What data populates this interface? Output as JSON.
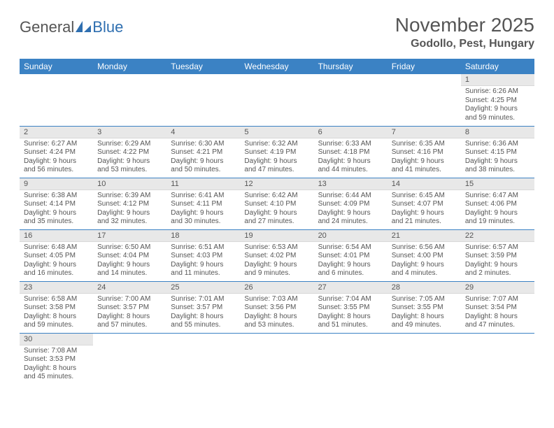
{
  "logo": {
    "part1": "General",
    "part2": "Blue",
    "shape_color": "#2f6fb0"
  },
  "title": "November 2025",
  "location": "Godollo, Pest, Hungary",
  "colors": {
    "header_bg": "#3b82c4",
    "header_fg": "#ffffff",
    "daynum_bg": "#e8e8e8",
    "row_border": "#3b82c4",
    "text": "#555555"
  },
  "day_headers": [
    "Sunday",
    "Monday",
    "Tuesday",
    "Wednesday",
    "Thursday",
    "Friday",
    "Saturday"
  ],
  "weeks": [
    [
      null,
      null,
      null,
      null,
      null,
      null,
      {
        "n": "1",
        "sr": "Sunrise: 6:26 AM",
        "ss": "Sunset: 4:25 PM",
        "dl": "Daylight: 9 hours and 59 minutes."
      }
    ],
    [
      {
        "n": "2",
        "sr": "Sunrise: 6:27 AM",
        "ss": "Sunset: 4:24 PM",
        "dl": "Daylight: 9 hours and 56 minutes."
      },
      {
        "n": "3",
        "sr": "Sunrise: 6:29 AM",
        "ss": "Sunset: 4:22 PM",
        "dl": "Daylight: 9 hours and 53 minutes."
      },
      {
        "n": "4",
        "sr": "Sunrise: 6:30 AM",
        "ss": "Sunset: 4:21 PM",
        "dl": "Daylight: 9 hours and 50 minutes."
      },
      {
        "n": "5",
        "sr": "Sunrise: 6:32 AM",
        "ss": "Sunset: 4:19 PM",
        "dl": "Daylight: 9 hours and 47 minutes."
      },
      {
        "n": "6",
        "sr": "Sunrise: 6:33 AM",
        "ss": "Sunset: 4:18 PM",
        "dl": "Daylight: 9 hours and 44 minutes."
      },
      {
        "n": "7",
        "sr": "Sunrise: 6:35 AM",
        "ss": "Sunset: 4:16 PM",
        "dl": "Daylight: 9 hours and 41 minutes."
      },
      {
        "n": "8",
        "sr": "Sunrise: 6:36 AM",
        "ss": "Sunset: 4:15 PM",
        "dl": "Daylight: 9 hours and 38 minutes."
      }
    ],
    [
      {
        "n": "9",
        "sr": "Sunrise: 6:38 AM",
        "ss": "Sunset: 4:14 PM",
        "dl": "Daylight: 9 hours and 35 minutes."
      },
      {
        "n": "10",
        "sr": "Sunrise: 6:39 AM",
        "ss": "Sunset: 4:12 PM",
        "dl": "Daylight: 9 hours and 32 minutes."
      },
      {
        "n": "11",
        "sr": "Sunrise: 6:41 AM",
        "ss": "Sunset: 4:11 PM",
        "dl": "Daylight: 9 hours and 30 minutes."
      },
      {
        "n": "12",
        "sr": "Sunrise: 6:42 AM",
        "ss": "Sunset: 4:10 PM",
        "dl": "Daylight: 9 hours and 27 minutes."
      },
      {
        "n": "13",
        "sr": "Sunrise: 6:44 AM",
        "ss": "Sunset: 4:09 PM",
        "dl": "Daylight: 9 hours and 24 minutes."
      },
      {
        "n": "14",
        "sr": "Sunrise: 6:45 AM",
        "ss": "Sunset: 4:07 PM",
        "dl": "Daylight: 9 hours and 21 minutes."
      },
      {
        "n": "15",
        "sr": "Sunrise: 6:47 AM",
        "ss": "Sunset: 4:06 PM",
        "dl": "Daylight: 9 hours and 19 minutes."
      }
    ],
    [
      {
        "n": "16",
        "sr": "Sunrise: 6:48 AM",
        "ss": "Sunset: 4:05 PM",
        "dl": "Daylight: 9 hours and 16 minutes."
      },
      {
        "n": "17",
        "sr": "Sunrise: 6:50 AM",
        "ss": "Sunset: 4:04 PM",
        "dl": "Daylight: 9 hours and 14 minutes."
      },
      {
        "n": "18",
        "sr": "Sunrise: 6:51 AM",
        "ss": "Sunset: 4:03 PM",
        "dl": "Daylight: 9 hours and 11 minutes."
      },
      {
        "n": "19",
        "sr": "Sunrise: 6:53 AM",
        "ss": "Sunset: 4:02 PM",
        "dl": "Daylight: 9 hours and 9 minutes."
      },
      {
        "n": "20",
        "sr": "Sunrise: 6:54 AM",
        "ss": "Sunset: 4:01 PM",
        "dl": "Daylight: 9 hours and 6 minutes."
      },
      {
        "n": "21",
        "sr": "Sunrise: 6:56 AM",
        "ss": "Sunset: 4:00 PM",
        "dl": "Daylight: 9 hours and 4 minutes."
      },
      {
        "n": "22",
        "sr": "Sunrise: 6:57 AM",
        "ss": "Sunset: 3:59 PM",
        "dl": "Daylight: 9 hours and 2 minutes."
      }
    ],
    [
      {
        "n": "23",
        "sr": "Sunrise: 6:58 AM",
        "ss": "Sunset: 3:58 PM",
        "dl": "Daylight: 8 hours and 59 minutes."
      },
      {
        "n": "24",
        "sr": "Sunrise: 7:00 AM",
        "ss": "Sunset: 3:57 PM",
        "dl": "Daylight: 8 hours and 57 minutes."
      },
      {
        "n": "25",
        "sr": "Sunrise: 7:01 AM",
        "ss": "Sunset: 3:57 PM",
        "dl": "Daylight: 8 hours and 55 minutes."
      },
      {
        "n": "26",
        "sr": "Sunrise: 7:03 AM",
        "ss": "Sunset: 3:56 PM",
        "dl": "Daylight: 8 hours and 53 minutes."
      },
      {
        "n": "27",
        "sr": "Sunrise: 7:04 AM",
        "ss": "Sunset: 3:55 PM",
        "dl": "Daylight: 8 hours and 51 minutes."
      },
      {
        "n": "28",
        "sr": "Sunrise: 7:05 AM",
        "ss": "Sunset: 3:55 PM",
        "dl": "Daylight: 8 hours and 49 minutes."
      },
      {
        "n": "29",
        "sr": "Sunrise: 7:07 AM",
        "ss": "Sunset: 3:54 PM",
        "dl": "Daylight: 8 hours and 47 minutes."
      }
    ],
    [
      {
        "n": "30",
        "sr": "Sunrise: 7:08 AM",
        "ss": "Sunset: 3:53 PM",
        "dl": "Daylight: 8 hours and 45 minutes."
      },
      null,
      null,
      null,
      null,
      null,
      null
    ]
  ]
}
